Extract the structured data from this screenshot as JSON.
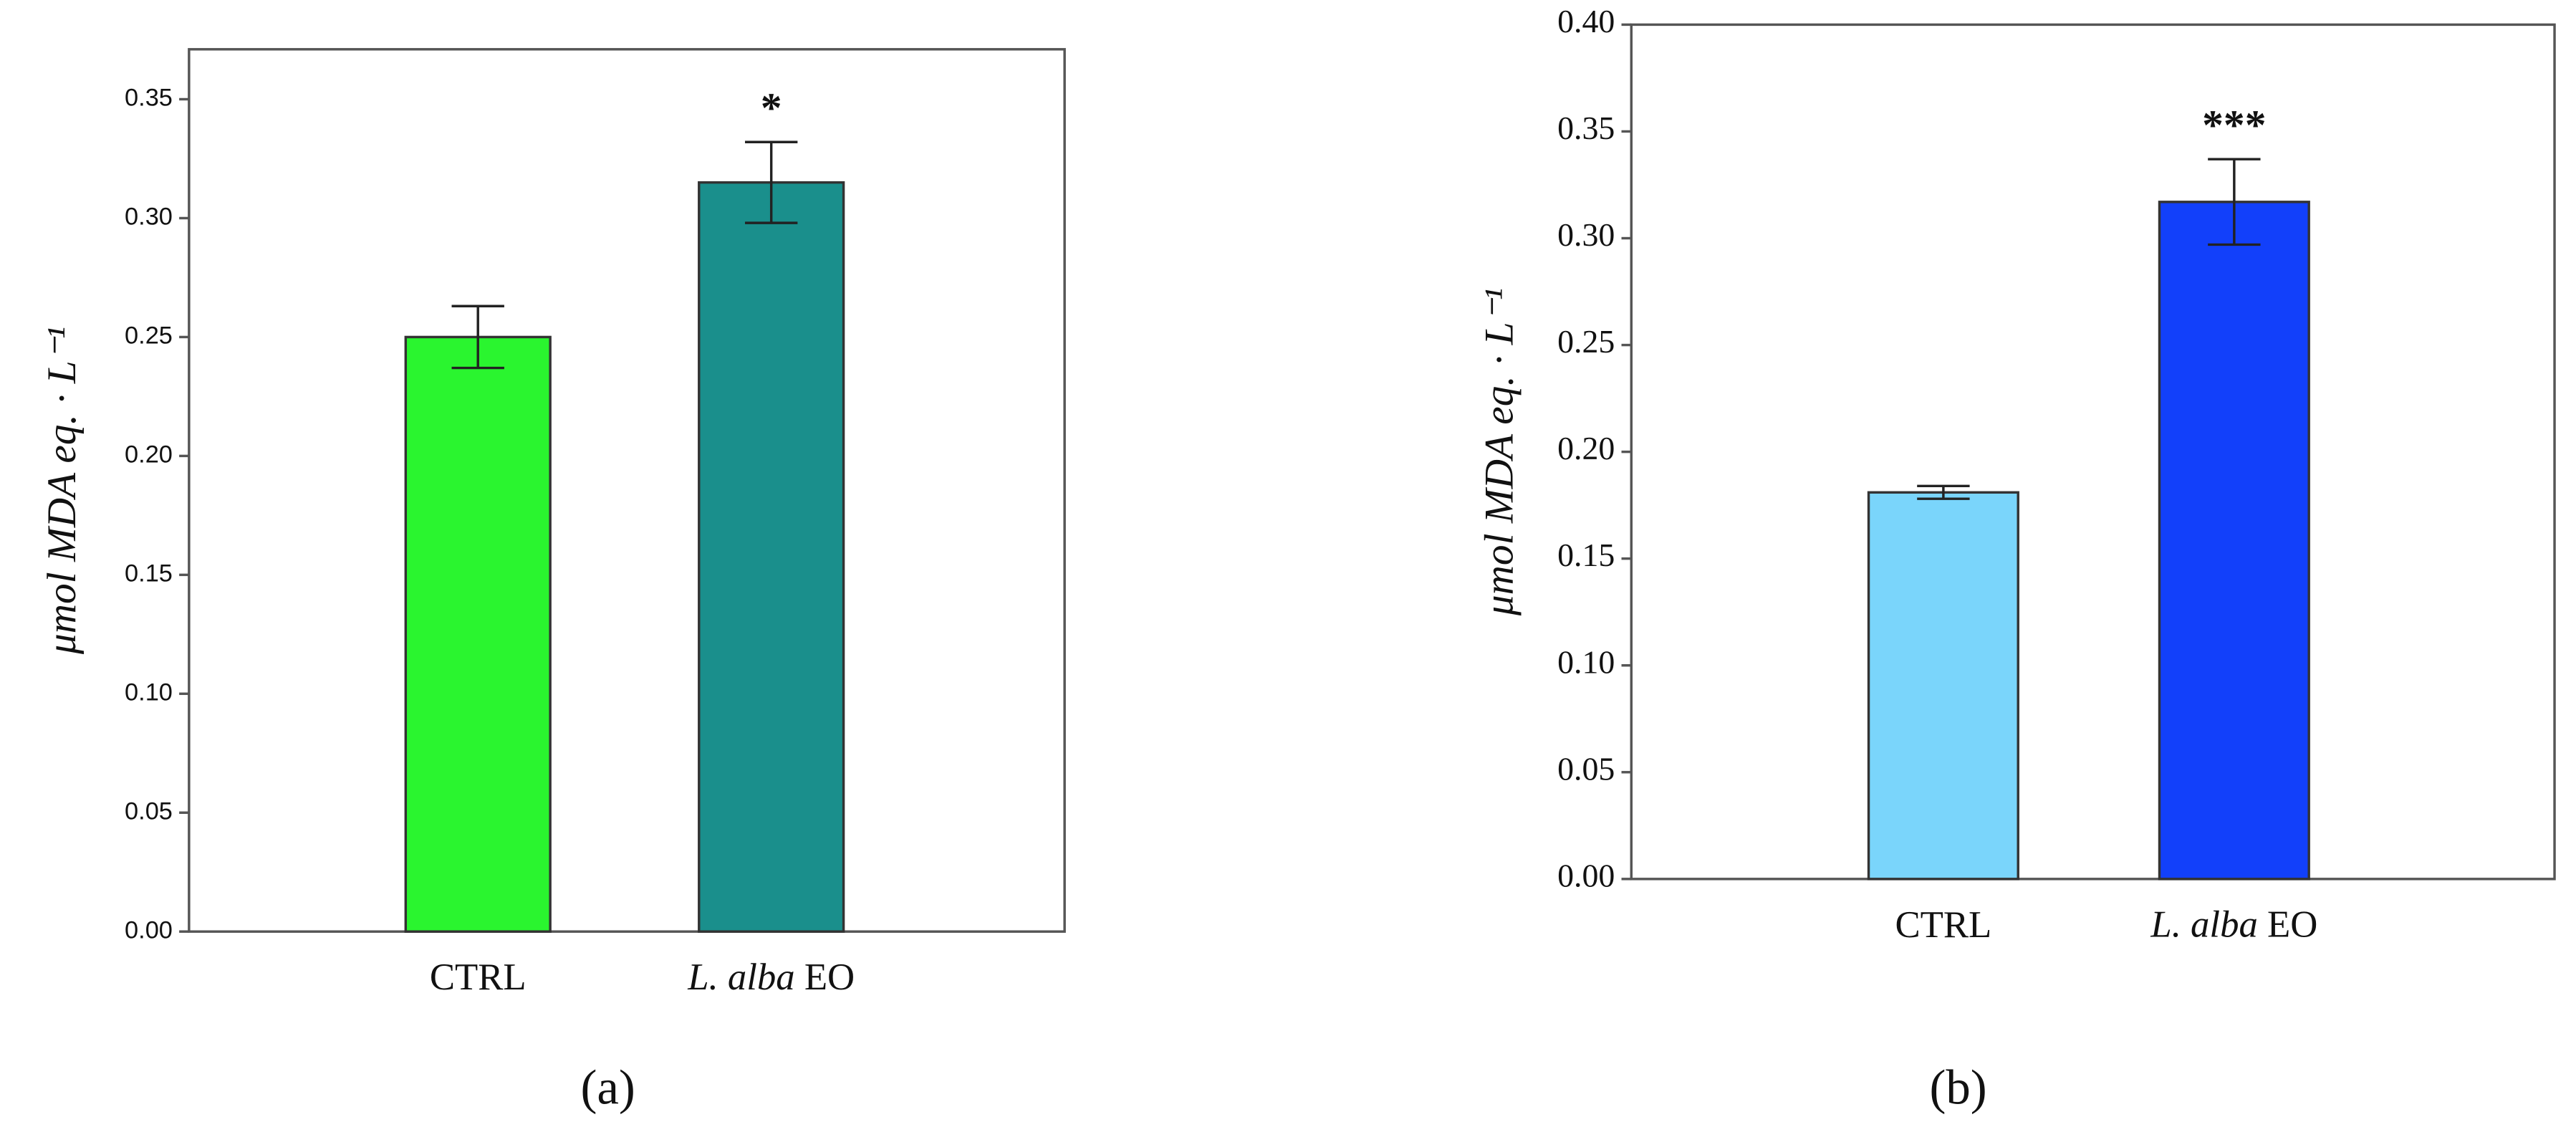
{
  "chart_data": [
    {
      "type": "bar",
      "panel": "(a)",
      "y_label": "μmol MDA eq. · L⁻¹",
      "categories": [
        "CTRL",
        "L. alba EO"
      ],
      "values": [
        0.25,
        0.315
      ],
      "errors": [
        0.013,
        0.017
      ],
      "colors": [
        "#2af52f",
        "#1a8f8c"
      ],
      "annotations": [
        {
          "category": "L. alba EO",
          "text": "*"
        }
      ],
      "ylim": [
        0,
        0.371
      ],
      "yticks": [
        {
          "value": 0,
          "label": "0.00"
        },
        0.05,
        {
          "value": 0.1,
          "label": "0.10"
        },
        0.15,
        {
          "value": 0.2,
          "label": "0.20"
        },
        0.25,
        {
          "value": 0.3,
          "label": "0.30"
        },
        0.35
      ]
    },
    {
      "type": "bar",
      "panel": "(b)",
      "y_label": "μmol MDA eq. · L⁻¹",
      "categories": [
        "CTRL",
        "L. alba EO"
      ],
      "values": [
        0.181,
        0.317
      ],
      "errors": [
        0.003,
        0.02
      ],
      "colors": [
        "#7ad5fb",
        "#1240fa"
      ],
      "annotations": [
        {
          "category": "L. alba EO",
          "text": "***"
        }
      ],
      "ylim": [
        0,
        0.4
      ],
      "yticks": [
        {
          "value": 0,
          "label": "0.00"
        },
        0.05,
        {
          "value": 0.1,
          "label": "0.10"
        },
        0.15,
        {
          "value": 0.2,
          "label": "0.20"
        },
        0.25,
        {
          "value": 0.3,
          "label": "0.30"
        },
        0.35,
        {
          "value": 0.4,
          "label": "0.40"
        }
      ]
    }
  ]
}
